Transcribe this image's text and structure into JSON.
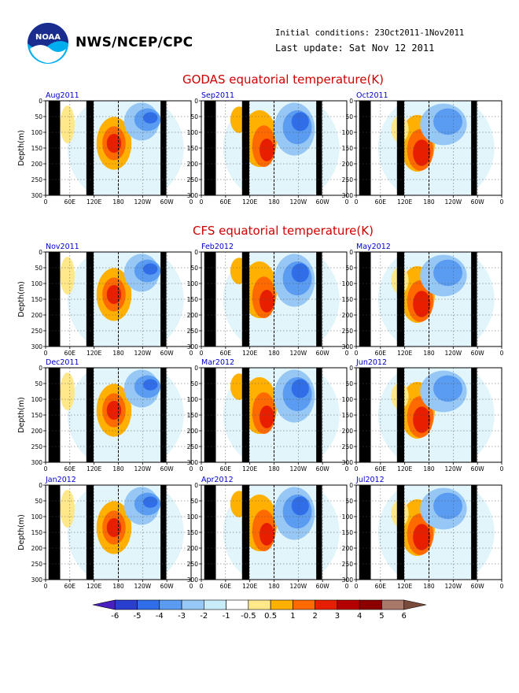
{
  "header": {
    "org": "NWS/NCEP/CPC",
    "initial_conditions": "Initial conditions: 23Oct2011-1Nov2011",
    "last_update": "Last update: Sat Nov 12 2011",
    "logo_text": "NOAA"
  },
  "colors": {
    "title": "#cc0000",
    "panel_label": "#0000cc",
    "land": "#000000",
    "scale": [
      "#4a1fbf",
      "#2a3fd0",
      "#2f6ee8",
      "#5a9cf2",
      "#97c8f5",
      "#c8ecf8",
      "#ffffff",
      "#ffe88a",
      "#ffb000",
      "#ff6a00",
      "#e81e00",
      "#b40000",
      "#8c0000",
      "#a8786a",
      "#7a4a3a"
    ]
  },
  "chart_data": [
    {
      "type": "heatmap",
      "group": "GODAS",
      "section_title": "GODAS equatorial temperature(K)",
      "ylabel": "Depth(m)",
      "panels": [
        {
          "label": "Aug2011"
        },
        {
          "label": "Sep2011"
        },
        {
          "label": "Oct2011"
        }
      ]
    },
    {
      "type": "heatmap",
      "group": "CFS",
      "section_title": "CFS equatorial temperature(K)",
      "ylabel": "Depth(m)",
      "panels": [
        {
          "label": "Nov2011"
        },
        {
          "label": "Feb2012"
        },
        {
          "label": "May2012"
        },
        {
          "label": "Dec2011"
        },
        {
          "label": "Mar2012"
        },
        {
          "label": "Jun2012"
        },
        {
          "label": "Jan2012"
        },
        {
          "label": "Apr2012"
        },
        {
          "label": "Jul2012"
        }
      ]
    }
  ],
  "axes": {
    "x_ticks": [
      "0",
      "60E",
      "120E",
      "180",
      "120W",
      "60W",
      "0"
    ],
    "x_range": [
      0,
      360
    ],
    "y_ticks": [
      "0",
      "50",
      "100",
      "150",
      "200",
      "250",
      "300"
    ],
    "y_range": [
      0,
      300
    ],
    "grid": true
  },
  "colorbar": {
    "labels": [
      "-6",
      "-5",
      "-4",
      "-3",
      "-2",
      "-1",
      "-0.5",
      "0.5",
      "1",
      "2",
      "3",
      "4",
      "5",
      "6"
    ]
  }
}
